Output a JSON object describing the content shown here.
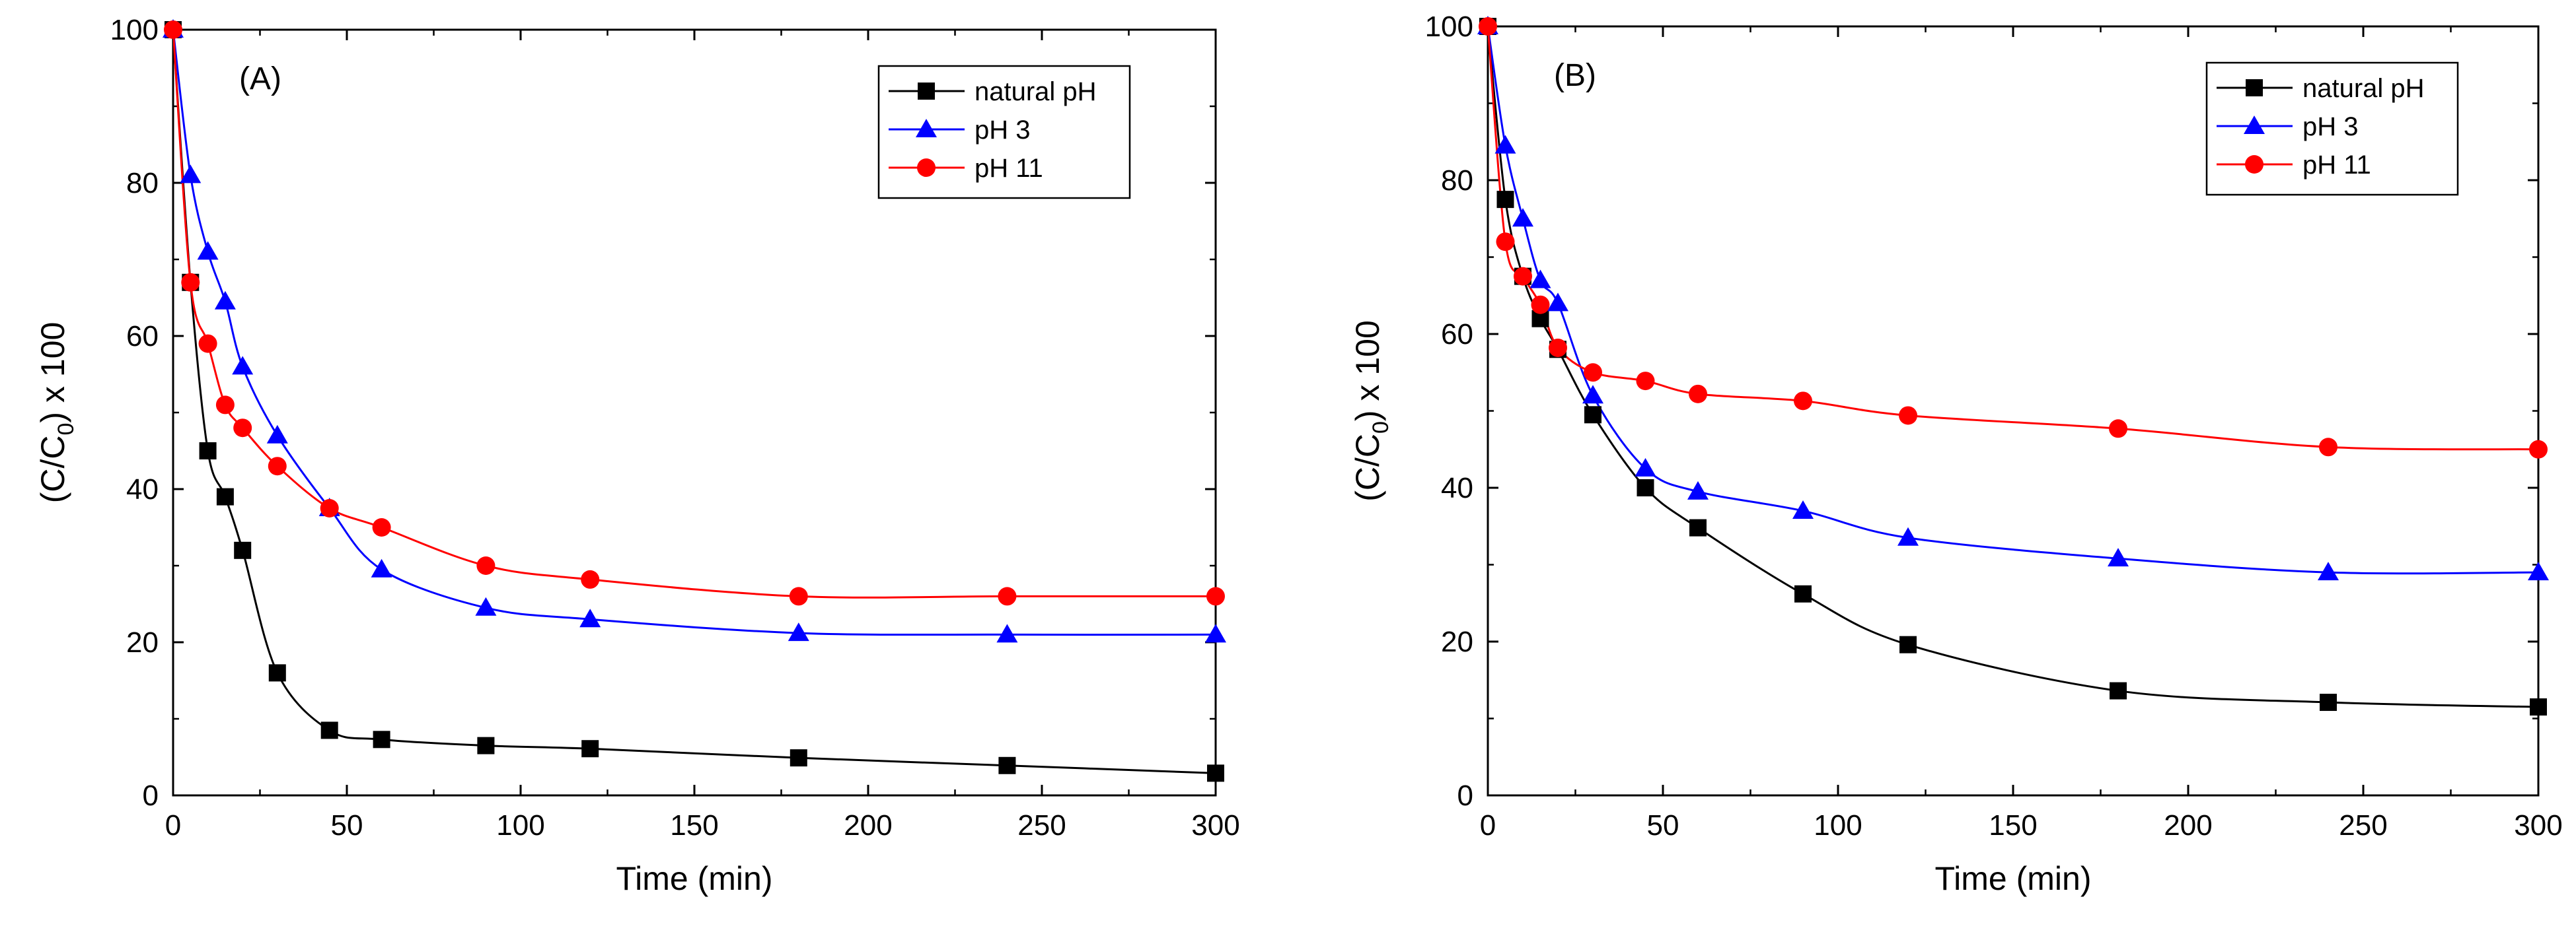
{
  "chart_data": [
    {
      "panel_label": "(A)",
      "type": "line",
      "xlabel": "Time (min)",
      "ylabel_main": "(C/C",
      "ylabel_sub": "0",
      "ylabel_tail": ") x 100",
      "xlim": [
        0,
        300
      ],
      "ylim": [
        0,
        100
      ],
      "x_ticks": [
        "0",
        "50",
        "100",
        "150",
        "200",
        "250",
        "300"
      ],
      "y_ticks": [
        "0",
        "20",
        "40",
        "60",
        "80",
        "100"
      ],
      "legend_position": "top-right",
      "x": [
        0,
        5,
        10,
        15,
        20,
        30,
        45,
        60,
        90,
        120,
        180,
        240,
        300
      ],
      "series": [
        {
          "name": "natural pH",
          "color": "#000000",
          "marker": "square",
          "values": [
            100,
            67,
            45,
            39,
            32,
            16,
            8.5,
            7.3,
            6.5,
            6.1,
            4.9,
            3.9,
            2.9
          ]
        },
        {
          "name": "pH 3",
          "color": "#0000ff",
          "marker": "triangle",
          "values": [
            100,
            81,
            71,
            64.5,
            56,
            47,
            37.5,
            29.5,
            24.5,
            23,
            21.2,
            21,
            21
          ]
        },
        {
          "name": "pH 11",
          "color": "#ff0000",
          "marker": "circle",
          "values": [
            100,
            67,
            59,
            51,
            48,
            43,
            37.5,
            35,
            30,
            28.2,
            26,
            26,
            26
          ]
        }
      ]
    },
    {
      "panel_label": "(B)",
      "type": "line",
      "xlabel": "Time (min)",
      "ylabel_main": "(C/C",
      "ylabel_sub": "0",
      "ylabel_tail": ") x 100",
      "xlim": [
        0,
        300
      ],
      "ylim": [
        0,
        100
      ],
      "x_ticks": [
        "0",
        "50",
        "100",
        "150",
        "200",
        "250",
        "300"
      ],
      "y_ticks": [
        "0",
        "20",
        "40",
        "60",
        "80",
        "100"
      ],
      "legend_position": "top-right",
      "x": [
        0,
        5,
        10,
        15,
        20,
        30,
        45,
        60,
        90,
        120,
        180,
        240,
        300
      ],
      "series": [
        {
          "name": "natural pH",
          "color": "#000000",
          "marker": "square",
          "values": [
            100,
            77.5,
            67.5,
            62,
            58,
            49.5,
            40,
            34.8,
            26.2,
            19.6,
            13.6,
            12.1,
            11.5
          ]
        },
        {
          "name": "pH 3",
          "color": "#0000ff",
          "marker": "triangle",
          "values": [
            100,
            84.5,
            75,
            67,
            64,
            52,
            42.5,
            39.5,
            37,
            33.5,
            30.8,
            29,
            29
          ]
        },
        {
          "name": "pH 11",
          "color": "#ff0000",
          "marker": "circle",
          "values": [
            100,
            72,
            67.5,
            63.8,
            58.2,
            55,
            53.9,
            52.2,
            51.3,
            49.4,
            47.7,
            45.3,
            45
          ]
        }
      ]
    }
  ]
}
